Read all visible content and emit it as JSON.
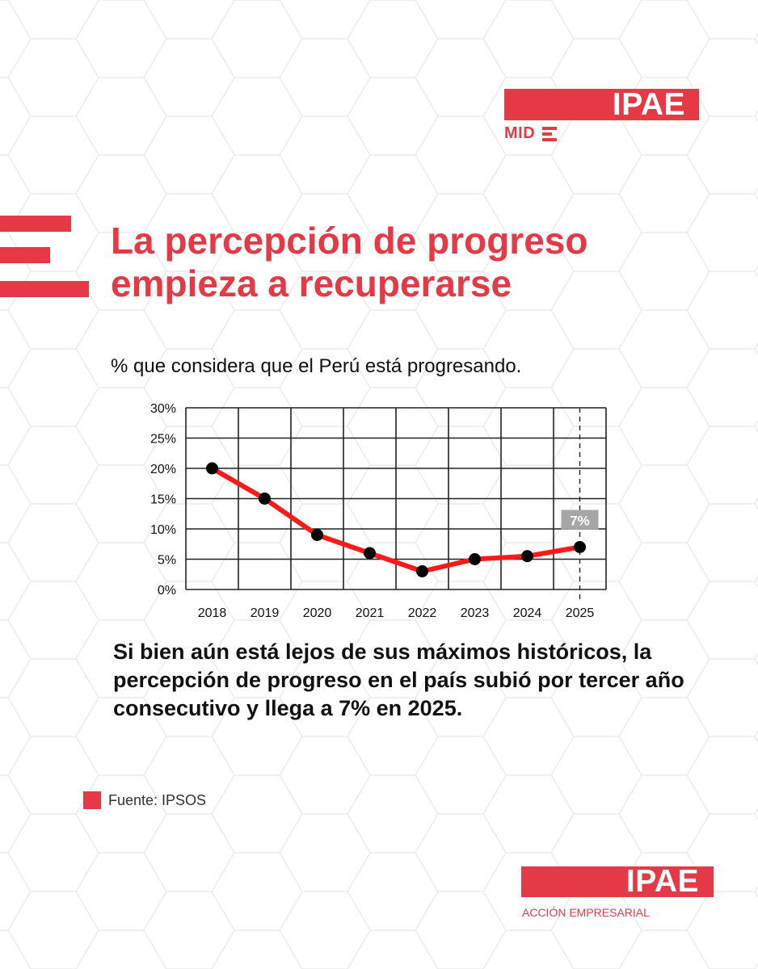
{
  "brand": {
    "logo_text": "IPAE",
    "logo_sub": "MID",
    "bottom_logo_text": "IPAE",
    "bottom_logo_sub": "ACCIÓN EMPRESARIAL",
    "accent": "#e63946"
  },
  "headline": "La percepción de progreso empieza a recuperarse",
  "subtitle": "% que considera que el Perú está progresando.",
  "body": "Si bien aún está lejos de sus máximos históricos, la percepción de progreso en el país subió por tercer año consecutivo y llega a 7% en 2025.",
  "source": "Fuente: IPSOS",
  "chart_data": {
    "type": "line",
    "title": "",
    "xlabel": "",
    "ylabel": "",
    "categories": [
      "2018",
      "2019",
      "2020",
      "2021",
      "2022",
      "2023",
      "2024",
      "2025"
    ],
    "series": [
      {
        "values": [
          20,
          15,
          9,
          6,
          3,
          5,
          5.5,
          7
        ]
      }
    ],
    "ylim": [
      0,
      30
    ],
    "yticks": [
      0,
      5,
      10,
      15,
      20,
      25,
      30
    ],
    "ytick_labels": [
      "0%",
      "5%",
      "10%",
      "15%",
      "20%",
      "25%",
      "30%"
    ],
    "grid": true,
    "annotations": [
      {
        "x": "2025",
        "label": "7%"
      }
    ],
    "line_color": "#ff1a1a",
    "marker_color": "#000000",
    "annotation_color": "#a6a6a6"
  }
}
